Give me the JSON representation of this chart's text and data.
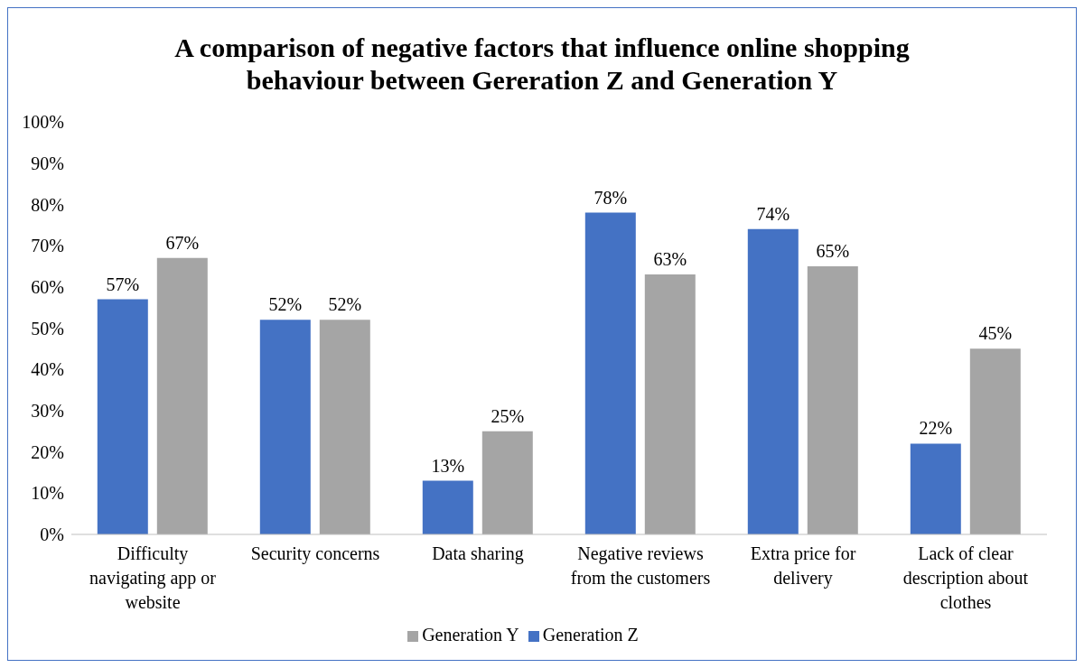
{
  "chart_data": {
    "type": "bar",
    "title": "A comparison of negative factors that influence online shopping behaviour between Gereration Z and Generation Y",
    "categories": [
      "Difficulty navigating app or website",
      "Security concerns",
      "Data sharing",
      "Negative reviews from the customers",
      "Extra price for delivery",
      "Lack of clear description about clothes"
    ],
    "series": [
      {
        "name": "Generation Z",
        "color": "#4472c4",
        "values": [
          57,
          52,
          13,
          78,
          74,
          22
        ],
        "value_labels": [
          "57%",
          "52%",
          "13%",
          "78%",
          "74%",
          "22%"
        ]
      },
      {
        "name": "Generation Y",
        "color": "#a5a5a5",
        "values": [
          67,
          52,
          25,
          63,
          65,
          45
        ],
        "value_labels": [
          "67%",
          "52%",
          "25%",
          "63%",
          "65%",
          "45%"
        ]
      }
    ],
    "ylim": [
      0,
      100
    ],
    "yticks": [
      {
        "value": 0,
        "label": "0%"
      },
      {
        "value": 10,
        "label": "10%"
      },
      {
        "value": 20,
        "label": "20%"
      },
      {
        "value": 30,
        "label": "30%"
      },
      {
        "value": 40,
        "label": "40%"
      },
      {
        "value": 50,
        "label": "50%"
      },
      {
        "value": 60,
        "label": "60%"
      },
      {
        "value": 70,
        "label": "70%"
      },
      {
        "value": 80,
        "label": "80%"
      },
      {
        "value": 90,
        "label": "90%"
      },
      {
        "value": 100,
        "label": "100%"
      }
    ],
    "grid": false,
    "legend": "bottom"
  }
}
